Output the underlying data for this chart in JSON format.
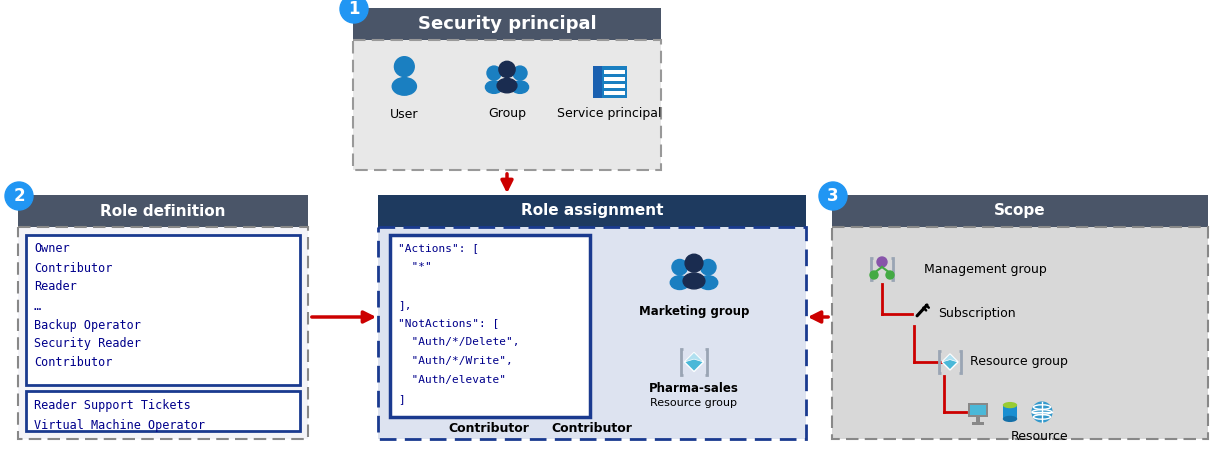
{
  "bg_color": "#ffffff",
  "dark_header_color": "#4a5568",
  "blue_header_color": "#1e3a5f",
  "light_bg_color": "#e8e8e8",
  "scope_bg_color": "#d8d8d8",
  "role_assign_bg": "#dde3f0",
  "role_def_bg": "#f0f0f8",
  "dashed_border_color": "#888888",
  "blue_dashed_color": "#1a3a8f",
  "blue_border_color": "#1a3a8f",
  "circle_color": "#2196F3",
  "arrow_color": "#cc0000",
  "mono_text_color": "#00008B",
  "white": "#ffffff",
  "sec_principal_title": "Security principal",
  "sec_principal_items": [
    "User",
    "Group",
    "Service principal"
  ],
  "role_def_title": "Role definition",
  "role_def_items1": [
    "Owner",
    "Contributor",
    "Reader",
    "…",
    "Backup Operator",
    "Security Reader",
    "Contributor"
  ],
  "role_def_items2": [
    "Reader Support Tickets",
    "Virtual Machine Operator"
  ],
  "role_assign_title": "Role assignment",
  "role_assign_code": [
    "\"Actions\": [",
    "  \"*\"",
    "",
    "],",
    "\"NotActions\": [",
    "  \"Auth/*/Delete\",",
    "  \"Auth/*/Write\",",
    "  \"Auth/elevate\"",
    "]"
  ],
  "role_assign_group_label": "Marketing group",
  "role_assign_res_label": "Pharma-sales",
  "role_assign_res_sub": "Resource group",
  "role_assign_bottom_label": "Contributor",
  "scope_title": "Scope",
  "scope_items": [
    "Management group",
    "Subscription",
    "Resource group",
    "Resource"
  ],
  "label1": "1",
  "label2": "2",
  "label3": "3",
  "icon_blue": "#1a7fc1",
  "icon_dark_blue": "#1a2c50",
  "icon_cyan": "#00b0d8",
  "icon_gray": "#9aa5b4",
  "icon_purple": "#8855aa",
  "icon_green": "#88bb22",
  "icon_orange": "#e07020"
}
